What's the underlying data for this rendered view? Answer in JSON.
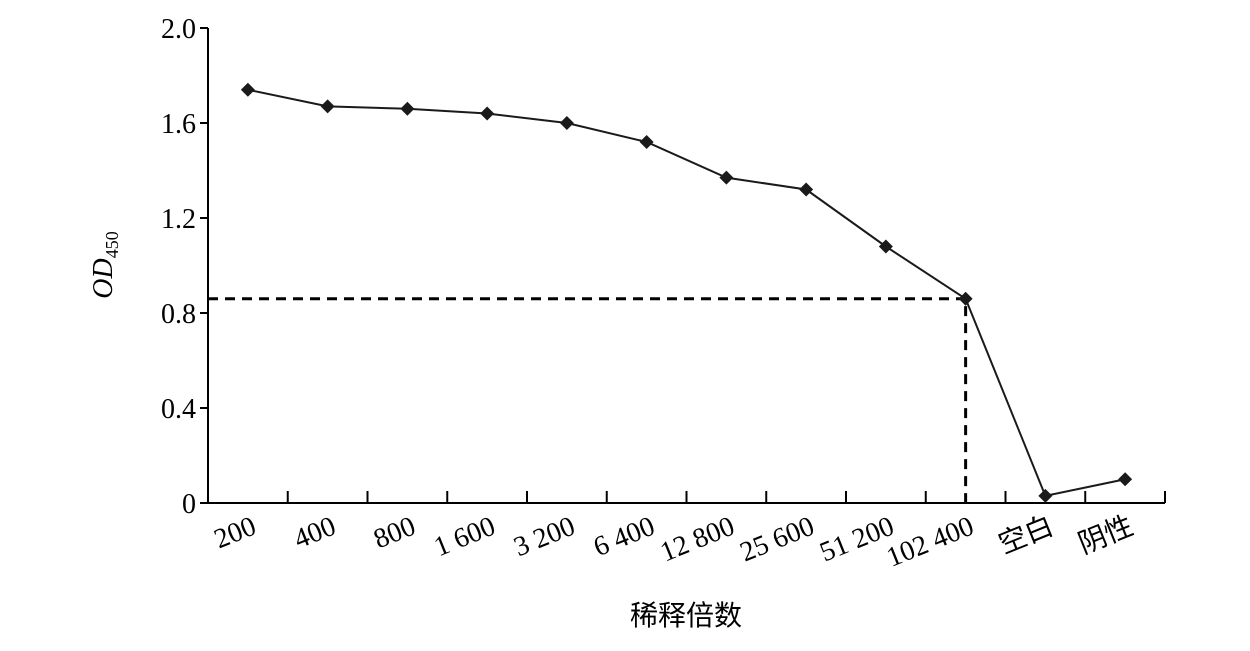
{
  "chart_data": {
    "type": "line",
    "xlabel": "稀释倍数",
    "ylabel": {
      "text": "OD",
      "subscript": "450"
    },
    "categories": [
      "200",
      "400",
      "800",
      "1 600",
      "3 200",
      "6 400",
      "12 800",
      "25 600",
      "51 200",
      "102 400",
      "空白",
      "阴性"
    ],
    "values": [
      1.74,
      1.67,
      1.66,
      1.64,
      1.6,
      1.52,
      1.37,
      1.32,
      1.08,
      0.86,
      0.03,
      0.1
    ],
    "color": "#1a1a1a",
    "ylim": [
      0,
      2
    ],
    "yticks": [
      0,
      0.4,
      0.8,
      1.2,
      1.6,
      {
        "value": 2,
        "label": "2.0"
      }
    ],
    "grid": false
  }
}
